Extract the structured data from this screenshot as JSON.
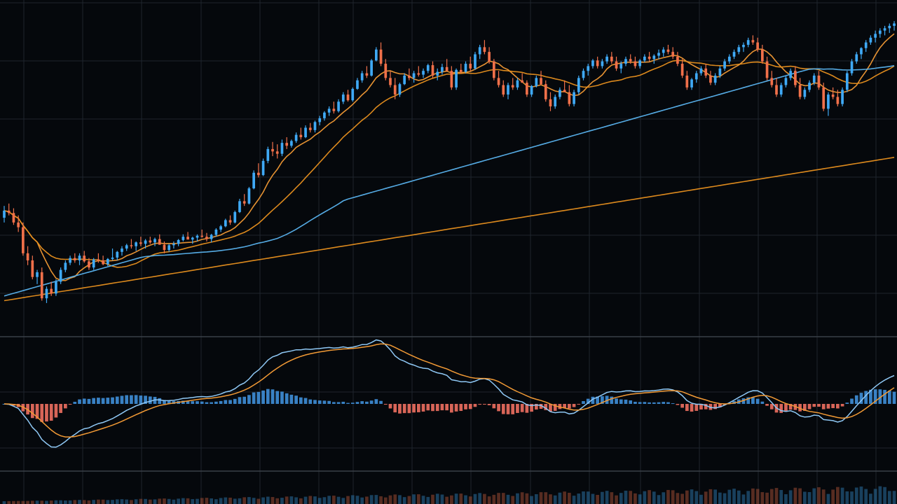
{
  "colors": {
    "background": "#05080c",
    "grid": "#1e252d",
    "panel_divider": "#3a4048",
    "up_candle": "#3fa9f5",
    "down_candle": "#f0704a",
    "ma_fast": "#f29a35",
    "ma_mid": "#e8901f",
    "ma_slow": "#5ab4f0",
    "ma_long": "#e8901f",
    "macd_line": "#8fc8f5",
    "signal_line": "#f29a35",
    "hist_pos": "#3f8fd8",
    "hist_neg": "#f07060"
  },
  "chart_data": [
    {
      "type": "candlestick",
      "panel": "price",
      "x": [
        0,
        1,
        2,
        3,
        4,
        5,
        6,
        7,
        8,
        9,
        10,
        11,
        12,
        13,
        14,
        15,
        16,
        17,
        18,
        19,
        20,
        21,
        22,
        23,
        24,
        25,
        26,
        27,
        28,
        29,
        30,
        31,
        32,
        33,
        34,
        35,
        36,
        37,
        38,
        39,
        40,
        41,
        42,
        43,
        44,
        45,
        46,
        47,
        48,
        49,
        50,
        51,
        52,
        53,
        54,
        55,
        56,
        57,
        58,
        59,
        60,
        61,
        62,
        63,
        64,
        65,
        66,
        67,
        68,
        69,
        70,
        71,
        72,
        73,
        74,
        75,
        76,
        77,
        78,
        79,
        80,
        81,
        82,
        83,
        84,
        85,
        86,
        87,
        88,
        89,
        90,
        91,
        92,
        93,
        94,
        95,
        96,
        97,
        98,
        99,
        100,
        101,
        102,
        103,
        104,
        105,
        106,
        107,
        108,
        109,
        110,
        111,
        112,
        113,
        114,
        115,
        116,
        117,
        118,
        119,
        120,
        121,
        122,
        123,
        124,
        125,
        126,
        127,
        128,
        129,
        130,
        131,
        132,
        133,
        134,
        135,
        136,
        137,
        138,
        139,
        140,
        141,
        142,
        143,
        144,
        145,
        146,
        147,
        148,
        149,
        150,
        151,
        152,
        153,
        154,
        155,
        156,
        157,
        158,
        159,
        160,
        161,
        162,
        163,
        164,
        165,
        166,
        167,
        168,
        169,
        170,
        171,
        172,
        173,
        174,
        175,
        176,
        177,
        178,
        179,
        180,
        181,
        182,
        183,
        184,
        185,
        186,
        187,
        188,
        189,
        190,
        191,
        192,
        193,
        194,
        195,
        196,
        197,
        198,
        199
      ],
      "ohlc": [
        [
          57.0,
          59.5,
          56.0,
          58.5
        ],
        [
          58.5,
          60.0,
          57.5,
          58.0
        ],
        [
          58.0,
          59.0,
          55.5,
          56.0
        ],
        [
          56.0,
          57.5,
          54.0,
          55.0
        ],
        [
          55.0,
          56.0,
          49.0,
          49.5
        ],
        [
          49.5,
          51.0,
          47.0,
          48.0
        ],
        [
          48.0,
          49.0,
          44.0,
          44.5
        ],
        [
          44.5,
          46.0,
          43.0,
          45.5
        ],
        [
          45.5,
          46.5,
          39.5,
          40.0
        ],
        [
          40.0,
          42.5,
          39.0,
          42.0
        ],
        [
          42.0,
          43.5,
          40.5,
          41.0
        ],
        [
          41.0,
          44.0,
          40.5,
          43.5
        ],
        [
          43.5,
          46.5,
          43.0,
          46.0
        ],
        [
          46.0,
          48.0,
          45.5,
          47.5
        ],
        [
          47.5,
          49.0,
          47.0,
          48.5
        ],
        [
          48.5,
          49.5,
          47.5,
          48.0
        ],
        [
          48.0,
          49.5,
          47.0,
          49.0
        ],
        [
          49.0,
          50.0,
          47.5,
          47.8
        ],
        [
          47.8,
          48.5,
          46.0,
          46.5
        ],
        [
          46.5,
          48.5,
          46.0,
          48.2
        ],
        [
          48.2,
          49.5,
          47.5,
          48.0
        ],
        [
          48.0,
          49.0,
          47.0,
          47.2
        ],
        [
          47.2,
          48.5,
          46.8,
          48.3
        ],
        [
          48.3,
          50.5,
          48.0,
          48.6
        ],
        [
          48.6,
          50.0,
          48.0,
          49.8
        ],
        [
          49.8,
          51.0,
          49.0,
          50.5
        ],
        [
          50.5,
          51.5,
          50.0,
          51.2
        ],
        [
          51.2,
          52.5,
          50.5,
          51.0
        ],
        [
          51.0,
          52.0,
          50.0,
          51.8
        ],
        [
          51.8,
          53.0,
          51.0,
          51.5
        ],
        [
          51.5,
          52.5,
          50.5,
          52.2
        ],
        [
          52.2,
          53.0,
          51.5,
          51.8
        ],
        [
          51.8,
          52.8,
          51.0,
          52.5
        ],
        [
          52.5,
          53.5,
          51.5,
          51.3
        ],
        [
          51.3,
          52.0,
          49.5,
          50.2
        ],
        [
          50.2,
          51.5,
          49.8,
          51.2
        ],
        [
          51.2,
          52.0,
          50.5,
          51.5
        ],
        [
          51.5,
          52.5,
          51.0,
          52.3
        ],
        [
          52.3,
          53.5,
          52.0,
          53.0
        ],
        [
          53.0,
          54.0,
          52.5,
          52.4
        ],
        [
          52.4,
          53.0,
          51.5,
          52.8
        ],
        [
          52.8,
          53.5,
          52.0,
          53.2
        ],
        [
          53.2,
          54.5,
          52.8,
          53.0
        ],
        [
          53.0,
          53.8,
          52.0,
          52.5
        ],
        [
          52.5,
          53.6,
          51.8,
          53.4
        ],
        [
          53.4,
          54.8,
          53.0,
          54.5
        ],
        [
          54.5,
          55.5,
          54.0,
          55.2
        ],
        [
          55.2,
          56.8,
          55.0,
          56.5
        ],
        [
          56.5,
          57.5,
          55.5,
          56.0
        ],
        [
          56.0,
          58.5,
          55.8,
          58.2
        ],
        [
          58.2,
          61.0,
          58.0,
          60.5
        ],
        [
          60.5,
          62.0,
          59.5,
          60.0
        ],
        [
          60.0,
          63.5,
          59.8,
          63.2
        ],
        [
          63.2,
          67.0,
          63.0,
          66.5
        ],
        [
          66.5,
          68.5,
          65.5,
          66.0
        ],
        [
          66.0,
          69.5,
          65.8,
          69.0
        ],
        [
          69.0,
          72.0,
          68.5,
          71.5
        ],
        [
          71.5,
          73.0,
          70.0,
          71.0
        ],
        [
          71.0,
          72.5,
          69.5,
          70.5
        ],
        [
          70.5,
          73.5,
          70.0,
          72.8
        ],
        [
          72.8,
          74.0,
          71.5,
          72.2
        ],
        [
          72.2,
          73.5,
          71.8,
          73.2
        ],
        [
          73.2,
          75.0,
          72.8,
          74.5
        ],
        [
          74.5,
          76.0,
          73.5,
          74.0
        ],
        [
          74.0,
          76.5,
          73.8,
          76.0
        ],
        [
          76.0,
          77.0,
          75.0,
          75.5
        ],
        [
          75.5,
          77.5,
          75.0,
          77.2
        ],
        [
          77.2,
          78.5,
          76.5,
          78.0
        ],
        [
          78.0,
          79.5,
          77.5,
          79.2
        ],
        [
          79.2,
          80.5,
          78.5,
          80.0
        ],
        [
          80.0,
          81.5,
          79.0,
          79.5
        ],
        [
          79.5,
          82.0,
          79.2,
          81.5
        ],
        [
          81.5,
          83.5,
          81.0,
          83.0
        ],
        [
          83.0,
          84.0,
          81.5,
          81.8
        ],
        [
          81.8,
          84.5,
          81.5,
          84.2
        ],
        [
          84.2,
          86.5,
          84.0,
          86.0
        ],
        [
          86.0,
          88.0,
          85.5,
          87.5
        ],
        [
          87.5,
          89.0,
          86.5,
          87.0
        ],
        [
          87.0,
          90.5,
          86.8,
          90.2
        ],
        [
          90.2,
          93.0,
          90.0,
          92.5
        ],
        [
          92.5,
          94.0,
          89.0,
          89.5
        ],
        [
          89.5,
          90.5,
          86.0,
          86.5
        ],
        [
          86.5,
          88.0,
          84.5,
          85.0
        ],
        [
          85.0,
          86.5,
          82.0,
          83.0
        ],
        [
          83.0,
          85.5,
          82.5,
          85.2
        ],
        [
          85.2,
          87.5,
          85.0,
          87.0
        ],
        [
          87.0,
          88.5,
          86.0,
          86.5
        ],
        [
          86.5,
          88.0,
          85.5,
          87.5
        ],
        [
          87.5,
          89.0,
          86.8,
          87.2
        ],
        [
          87.2,
          88.5,
          86.5,
          88.0
        ],
        [
          88.0,
          89.5,
          87.5,
          89.2
        ],
        [
          89.2,
          90.0,
          86.5,
          87.0
        ],
        [
          87.0,
          88.5,
          86.0,
          87.8
        ],
        [
          87.8,
          89.5,
          87.2,
          88.8
        ],
        [
          88.8,
          90.5,
          88.0,
          88.0
        ],
        [
          88.0,
          89.0,
          84.0,
          84.5
        ],
        [
          84.5,
          88.5,
          84.0,
          88.2
        ],
        [
          88.2,
          89.5,
          87.5,
          87.8
        ],
        [
          87.8,
          90.0,
          87.5,
          89.5
        ],
        [
          89.5,
          91.0,
          88.0,
          88.5
        ],
        [
          88.5,
          92.0,
          88.2,
          91.5
        ],
        [
          91.5,
          93.5,
          90.5,
          93.0
        ],
        [
          93.0,
          94.5,
          91.5,
          92.0
        ],
        [
          92.0,
          93.0,
          89.5,
          90.0
        ],
        [
          90.0,
          90.5,
          86.0,
          86.5
        ],
        [
          86.5,
          88.0,
          84.5,
          85.0
        ],
        [
          85.0,
          86.0,
          82.5,
          83.0
        ],
        [
          83.0,
          85.5,
          82.0,
          85.0
        ],
        [
          85.0,
          86.5,
          84.0,
          84.5
        ],
        [
          84.5,
          86.5,
          84.0,
          86.0
        ],
        [
          86.0,
          87.5,
          85.5,
          85.5
        ],
        [
          85.5,
          86.0,
          82.5,
          83.0
        ],
        [
          83.0,
          85.0,
          82.5,
          84.8
        ],
        [
          84.8,
          87.0,
          84.5,
          86.5
        ],
        [
          86.5,
          88.0,
          85.0,
          85.2
        ],
        [
          85.2,
          86.0,
          81.5,
          82.0
        ],
        [
          82.0,
          83.5,
          79.5,
          80.5
        ],
        [
          80.5,
          83.0,
          80.0,
          82.5
        ],
        [
          82.5,
          84.5,
          82.0,
          84.0
        ],
        [
          84.0,
          86.0,
          83.5,
          83.5
        ],
        [
          83.5,
          85.0,
          80.5,
          81.0
        ],
        [
          81.0,
          84.0,
          80.5,
          83.5
        ],
        [
          83.5,
          87.0,
          83.0,
          86.5
        ],
        [
          86.5,
          88.5,
          86.0,
          88.0
        ],
        [
          88.0,
          89.5,
          87.0,
          89.0
        ],
        [
          89.0,
          90.5,
          88.5,
          90.2
        ],
        [
          90.2,
          91.0,
          88.5,
          89.0
        ],
        [
          89.0,
          90.5,
          88.5,
          90.0
        ],
        [
          90.0,
          91.5,
          89.5,
          91.0
        ],
        [
          91.0,
          92.0,
          89.5,
          90.0
        ],
        [
          90.0,
          91.0,
          88.0,
          88.5
        ],
        [
          88.5,
          90.0,
          87.5,
          89.5
        ],
        [
          89.5,
          91.0,
          89.0,
          90.5
        ],
        [
          90.5,
          91.5,
          89.5,
          90.0
        ],
        [
          90.0,
          91.0,
          88.5,
          89.0
        ],
        [
          89.0,
          90.5,
          88.5,
          90.2
        ],
        [
          90.2,
          91.5,
          89.8,
          91.0
        ],
        [
          91.0,
          92.0,
          90.0,
          90.5
        ],
        [
          90.5,
          91.5,
          89.5,
          91.2
        ],
        [
          91.2,
          92.5,
          90.5,
          91.8
        ],
        [
          91.8,
          93.0,
          91.0,
          92.5
        ],
        [
          92.5,
          93.5,
          91.5,
          92.0
        ],
        [
          92.0,
          93.0,
          90.5,
          91.0
        ],
        [
          91.0,
          92.0,
          89.0,
          89.5
        ],
        [
          89.5,
          90.5,
          86.5,
          87.0
        ],
        [
          87.0,
          88.0,
          84.0,
          84.5
        ],
        [
          84.5,
          86.5,
          84.0,
          86.2
        ],
        [
          86.2,
          88.0,
          85.5,
          87.5
        ],
        [
          87.5,
          89.0,
          87.0,
          88.5
        ],
        [
          88.5,
          89.5,
          86.5,
          87.0
        ],
        [
          87.0,
          88.0,
          85.0,
          85.5
        ],
        [
          85.5,
          87.5,
          85.0,
          87.0
        ],
        [
          87.0,
          89.0,
          86.5,
          88.5
        ],
        [
          88.5,
          90.5,
          88.0,
          90.0
        ],
        [
          90.0,
          91.5,
          89.5,
          91.0
        ],
        [
          91.0,
          92.5,
          90.5,
          92.0
        ],
        [
          92.0,
          93.5,
          91.5,
          93.0
        ],
        [
          93.0,
          94.0,
          92.0,
          93.5
        ],
        [
          93.5,
          95.0,
          93.0,
          94.5
        ],
        [
          94.5,
          95.5,
          93.5,
          94.0
        ],
        [
          94.0,
          95.0,
          92.0,
          92.5
        ],
        [
          92.5,
          93.5,
          89.5,
          90.0
        ],
        [
          90.0,
          91.0,
          86.0,
          86.5
        ],
        [
          86.5,
          88.0,
          84.5,
          85.0
        ],
        [
          85.0,
          86.5,
          82.5,
          83.0
        ],
        [
          83.0,
          85.5,
          82.5,
          85.0
        ],
        [
          85.0,
          87.0,
          84.5,
          86.5
        ],
        [
          86.5,
          88.5,
          86.0,
          88.0
        ],
        [
          88.0,
          89.0,
          84.5,
          85.0
        ],
        [
          85.0,
          86.5,
          82.0,
          82.5
        ],
        [
          82.5,
          84.5,
          82.0,
          84.0
        ],
        [
          84.0,
          86.0,
          83.5,
          85.5
        ],
        [
          85.5,
          87.5,
          85.0,
          87.0
        ],
        [
          87.0,
          88.0,
          84.0,
          84.5
        ],
        [
          84.5,
          85.5,
          79.5,
          80.0
        ],
        [
          80.0,
          83.5,
          78.5,
          83.0
        ],
        [
          83.0,
          84.5,
          82.0,
          82.5
        ],
        [
          82.5,
          84.0,
          80.5,
          81.0
        ],
        [
          81.0,
          84.5,
          80.5,
          84.0
        ],
        [
          84.0,
          88.0,
          83.5,
          87.5
        ],
        [
          87.5,
          90.5,
          87.0,
          90.0
        ],
        [
          90.0,
          92.0,
          89.5,
          91.5
        ],
        [
          91.5,
          93.0,
          90.5,
          92.8
        ],
        [
          92.8,
          94.5,
          92.0,
          94.0
        ],
        [
          94.0,
          95.5,
          93.5,
          95.0
        ],
        [
          95.0,
          96.5,
          94.0,
          95.8
        ],
        [
          95.8,
          97.0,
          95.0,
          96.5
        ],
        [
          96.5,
          97.5,
          95.5,
          97.0
        ],
        [
          97.0,
          98.0,
          96.0,
          97.5
        ],
        [
          97.5,
          98.5,
          96.5,
          98.0
        ]
      ],
      "moving_averages": [
        {
          "kind": "fast",
          "values_period": 8
        },
        {
          "kind": "mid",
          "values_period": 21
        },
        {
          "kind": "slow",
          "values_period": 55
        },
        {
          "kind": "long",
          "values_period": 120
        }
      ],
      "ylim": [
        35,
        100
      ],
      "grid": true
    },
    {
      "type": "macd",
      "panel": "oscillator",
      "ylim": [
        -6,
        6
      ],
      "grid": true
    },
    {
      "type": "bar",
      "panel": "volume",
      "grid": false
    }
  ]
}
